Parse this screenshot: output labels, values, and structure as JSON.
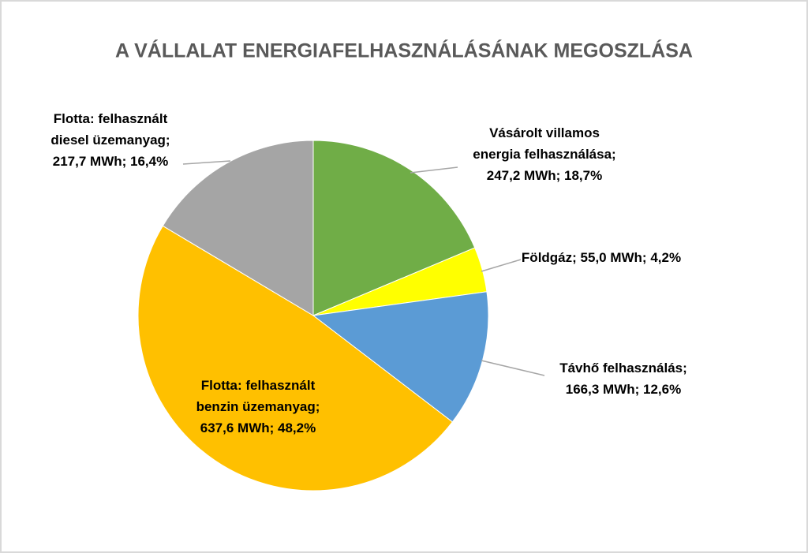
{
  "chart_data": {
    "type": "pie",
    "title": "A VÁLLALAT ENERGIAFELHASZNÁLÁSÁNAK MEGOSZLÁSA",
    "categories": [
      "Vásárolt villamos energia felhasználása;",
      "Földgáz; ",
      "Távhő felhasználás;",
      "Flotta: felhasznált benzin üzemanyag;",
      "Flotta: felhasznált diesel üzemanyag;"
    ],
    "values": [
      247.2,
      55.0,
      166.3,
      637.6,
      217.7
    ],
    "value_labels": [
      "247,2 MWh; 18,7%",
      "55,0 MWh; 4,2%",
      "166,3 MWh; 12,6%",
      "637,6 MWh; 48,2%",
      "217,7 MWh; 16,4%"
    ],
    "colors": [
      "#70ad47",
      "#ffff00",
      "#5b9bd5",
      "#ffc000",
      "#a5a5a5"
    ]
  }
}
